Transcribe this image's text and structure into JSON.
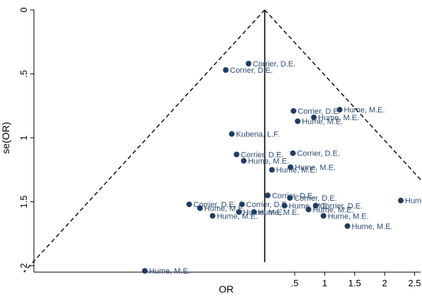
{
  "chart_data": {
    "type": "scatter",
    "title": "",
    "xlabel": "OR",
    "ylabel": "se(OR)",
    "x_ticks": [
      0.5,
      1,
      1.5,
      2,
      2.5
    ],
    "x_tick_labels": [
      ".5",
      "1",
      "1.5",
      "2",
      "2.5"
    ],
    "y_ticks": [
      0,
      0.5,
      1,
      1.5,
      2
    ],
    "y_tick_labels": [
      "0",
      ".5",
      "1",
      "1.5",
      "2"
    ],
    "xlim": [
      -3.85,
      2.6
    ],
    "ylim": [
      0,
      2.05
    ],
    "reversed_y": true,
    "pooled_estimate": 0,
    "grid": false,
    "legend": "none",
    "colors": {
      "marker": "#1f3d63",
      "label": "#2f4b70",
      "line": "#000000"
    },
    "points": [
      {
        "label": "Corrier, D.E.",
        "x": -0.27,
        "y": 0.42
      },
      {
        "label": "Corrier, D.E.",
        "x": -0.65,
        "y": 0.47
      },
      {
        "label": "Corrier, D.E.",
        "x": 0.48,
        "y": 0.79
      },
      {
        "label": "Hume, M.E.",
        "x": 1.25,
        "y": 0.78
      },
      {
        "label": "Hume, M.E.",
        "x": 0.82,
        "y": 0.84
      },
      {
        "label": "Hume, M.E.",
        "x": 0.55,
        "y": 0.87
      },
      {
        "label": "Kubena, L.F.",
        "x": -0.55,
        "y": 0.97
      },
      {
        "label": "Corrier, D.E.",
        "x": 0.47,
        "y": 1.12
      },
      {
        "label": "Corrier, D.E.",
        "x": -0.47,
        "y": 1.13
      },
      {
        "label": "Hume, M.E.",
        "x": -0.35,
        "y": 1.18
      },
      {
        "label": "Hume, M.E.",
        "x": 0.43,
        "y": 1.23
      },
      {
        "label": "Hume, M.E.",
        "x": 0.12,
        "y": 1.25
      },
      {
        "label": "Corrier, D.E.",
        "x": 0.05,
        "y": 1.45
      },
      {
        "label": "Corrier, D.E.",
        "x": 0.42,
        "y": 1.47
      },
      {
        "label": "Hume, M.E.",
        "x": 2.27,
        "y": 1.49
      },
      {
        "label": "Corrier, D.E.",
        "x": -1.26,
        "y": 1.52
      },
      {
        "label": "Corrier, D.E.",
        "x": -0.38,
        "y": 1.52
      },
      {
        "label": "Hume, M.E.",
        "x": 0.33,
        "y": 1.53
      },
      {
        "label": "Corrier, D.E.",
        "x": 0.85,
        "y": 1.53
      },
      {
        "label": "Hume, M.E.",
        "x": -1.08,
        "y": 1.55
      },
      {
        "label": "Hume, M.E.",
        "x": 0.73,
        "y": 1.56
      },
      {
        "label": "Hume, M.E.",
        "x": -0.43,
        "y": 1.58
      },
      {
        "label": "Hume, M.E.",
        "x": -0.18,
        "y": 1.58
      },
      {
        "label": "Hume, M.E.",
        "x": -0.87,
        "y": 1.61
      },
      {
        "label": "Hume, M.E.",
        "x": 0.98,
        "y": 1.61
      },
      {
        "label": "Hume, M.E.",
        "x": 1.38,
        "y": 1.69
      },
      {
        "label": "Hume, M.E.",
        "x": -2.0,
        "y": 2.04
      }
    ]
  }
}
